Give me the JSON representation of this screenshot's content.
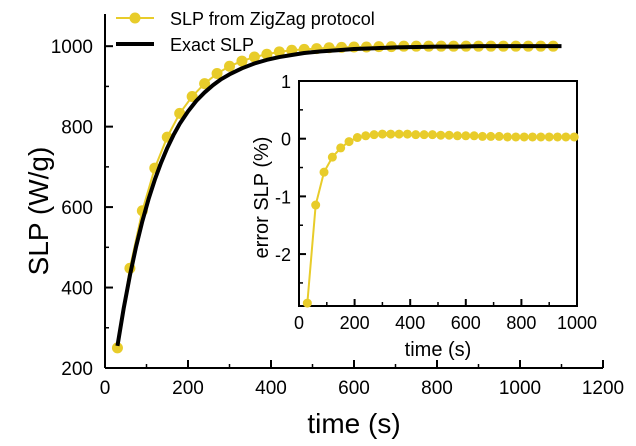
{
  "chart_data": [
    {
      "type": "line",
      "xlabel": "time (s)",
      "ylabel": "SLP (W/g)",
      "xlim": [
        0,
        1200
      ],
      "ylim": [
        200,
        1080
      ],
      "xticks": [
        0,
        200,
        400,
        600,
        800,
        1000,
        1200
      ],
      "yticks": [
        200,
        400,
        600,
        800,
        1000
      ],
      "legend": {
        "placement": "top-left"
      },
      "series": [
        {
          "name": "SLP from ZigZag protocol",
          "style": "line-with-circles",
          "color": "#e8cc2a",
          "x": [
            30,
            60,
            90,
            120,
            150,
            180,
            210,
            240,
            270,
            300,
            330,
            360,
            390,
            420,
            450,
            480,
            510,
            540,
            570,
            600,
            630,
            660,
            690,
            720,
            750,
            780,
            810,
            840,
            870,
            900,
            930,
            960,
            990,
            1020,
            1050,
            1080
          ],
          "y": [
            250,
            448,
            591,
            697,
            774,
            833,
            875,
            907,
            932,
            950,
            963,
            973,
            980,
            986,
            990,
            992,
            994,
            996,
            997,
            998,
            998,
            999,
            999,
            1000,
            1000,
            1000,
            1000,
            1000,
            1000,
            1000,
            1000,
            1000,
            1000,
            1000,
            1000,
            1000
          ]
        },
        {
          "name": "Exact SLP",
          "style": "line",
          "color": "#000000",
          "x": [
            30,
            45,
            60,
            75,
            90,
            105,
            120,
            135,
            150,
            165,
            180,
            200,
            220,
            240,
            260,
            280,
            300,
            330,
            360,
            390,
            420,
            450,
            480,
            520,
            560,
            600,
            650,
            700,
            750,
            800,
            850,
            900,
            950,
            1000,
            1050,
            1100
          ],
          "y": [
            255,
            348,
            430,
            502,
            565,
            620,
            668,
            710,
            747,
            779,
            807,
            838,
            864,
            885,
            903,
            918,
            930,
            945,
            957,
            966,
            973,
            978,
            983,
            987,
            990,
            993,
            995,
            997,
            998,
            999,
            999,
            1000,
            1000,
            1000,
            1000,
            1000
          ]
        }
      ]
    },
    {
      "type": "line",
      "xlabel": "time (s)",
      "ylabel": "error SLP (%)",
      "xlim": [
        0,
        1000
      ],
      "ylim": [
        -2.9,
        1
      ],
      "xticks": [
        0,
        200,
        400,
        600,
        800,
        1000
      ],
      "yticks": [
        -2,
        -1,
        0,
        1
      ],
      "series": [
        {
          "name": "",
          "style": "line-with-circles",
          "color": "#e8cc2a",
          "x": [
            30,
            60,
            90,
            120,
            150,
            180,
            210,
            240,
            270,
            300,
            330,
            360,
            390,
            420,
            450,
            480,
            510,
            540,
            570,
            600,
            630,
            660,
            690,
            720,
            750,
            780,
            810,
            840,
            870,
            900,
            930,
            960,
            990
          ],
          "y": [
            -2.85,
            -1.15,
            -0.58,
            -0.32,
            -0.16,
            -0.05,
            0.02,
            0.05,
            0.07,
            0.08,
            0.08,
            0.08,
            0.08,
            0.07,
            0.07,
            0.07,
            0.06,
            0.06,
            0.05,
            0.05,
            0.05,
            0.04,
            0.04,
            0.04,
            0.03,
            0.03,
            0.03,
            0.03,
            0.03,
            0.03,
            0.03,
            0.03,
            0.03
          ]
        }
      ]
    }
  ]
}
